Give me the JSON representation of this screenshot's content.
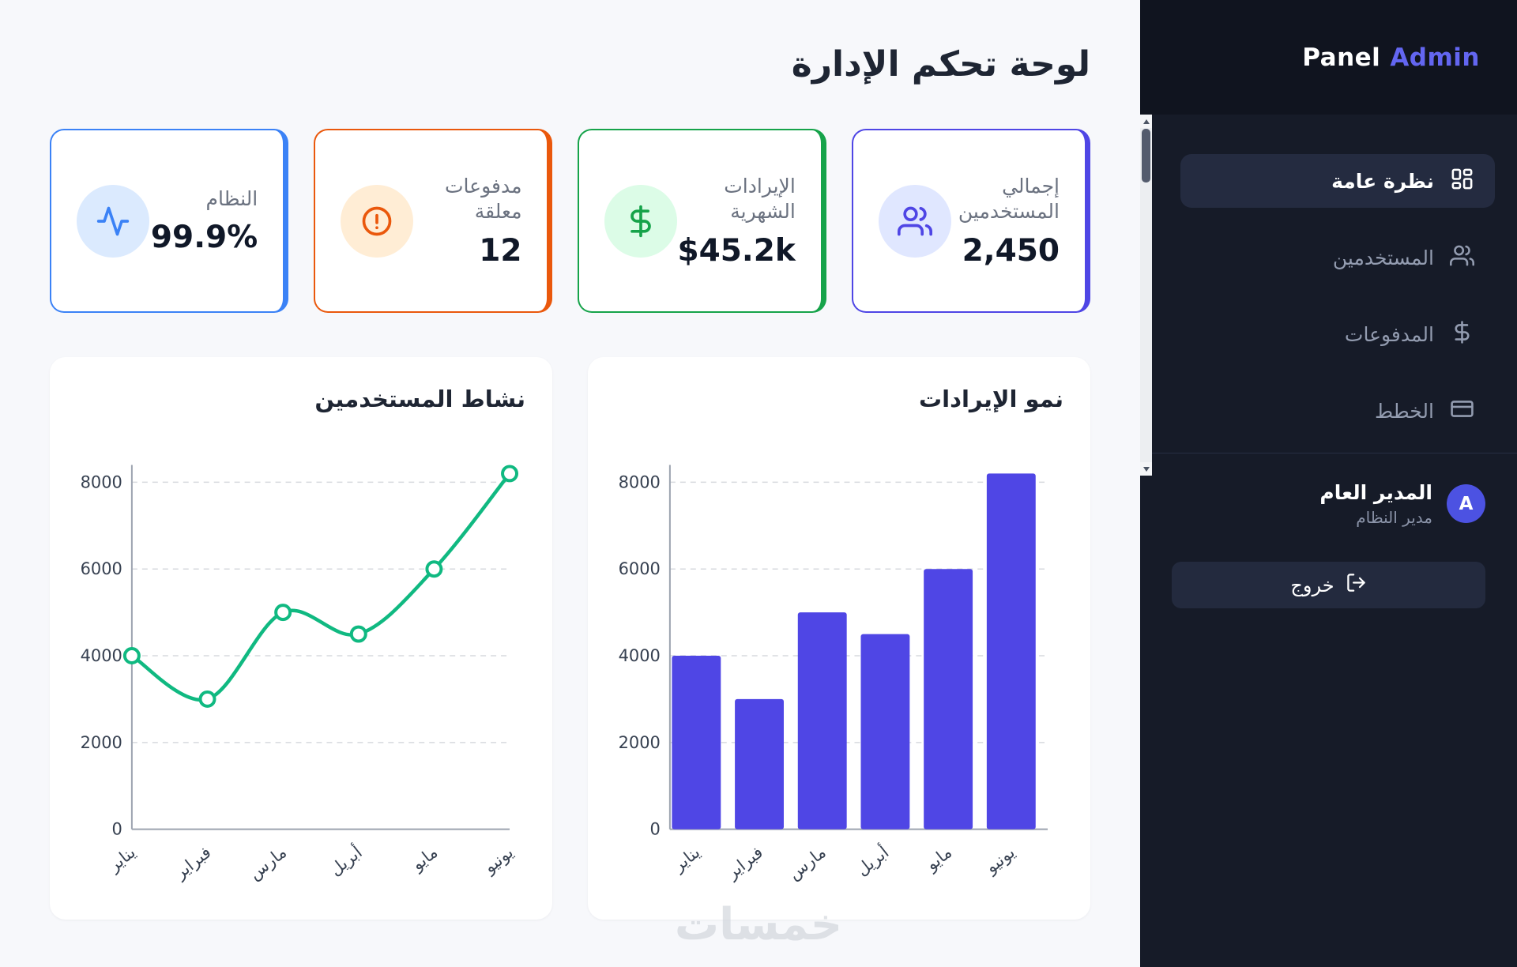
{
  "page": {
    "title": "لوحة تحكم الإدارة",
    "watermark": "خمسات"
  },
  "sidebar": {
    "brand": {
      "name": "Panel",
      "highlight": "Admin"
    },
    "nav": [
      {
        "label": "نظرة عامة",
        "icon": "dashboard-icon",
        "active": true
      },
      {
        "label": "المستخدمين",
        "icon": "users-icon",
        "active": false
      },
      {
        "label": "المدفوعات",
        "icon": "payments-icon",
        "active": false
      },
      {
        "label": "الخطط",
        "icon": "plans-icon",
        "active": false
      }
    ],
    "profile": {
      "initial": "A",
      "name": "المدير العام",
      "role": "مدير النظام"
    },
    "logout_label": "خروج"
  },
  "stats": [
    {
      "label": "إجمالي المستخدمين",
      "value": "2,450",
      "accent": "#4f46e5",
      "icon_bg": "#e0e7ff",
      "icon": "users-icon"
    },
    {
      "label": "الإيرادات الشهرية",
      "value": "$45.2k",
      "accent": "#16a34a",
      "icon_bg": "#dcfce7",
      "icon": "dollar-icon"
    },
    {
      "label": "مدفوعات معلقة",
      "value": "12",
      "accent": "#ea580c",
      "icon_bg": "#ffedd5",
      "icon": "alert-icon"
    },
    {
      "label": "النظام",
      "value": "99.9%",
      "accent": "#3b82f6",
      "icon_bg": "#dbeafe",
      "icon": "activity-icon"
    }
  ],
  "chart_data": [
    {
      "type": "bar",
      "title": "نمو الإيرادات",
      "categories": [
        "يناير",
        "فبراير",
        "مارس",
        "أبريل",
        "مايو",
        "يونيو"
      ],
      "values": [
        4000,
        3000,
        5000,
        4500,
        6000,
        8200
      ],
      "xlabel": "",
      "ylabel": "",
      "ylim": [
        0,
        8000
      ],
      "yticks": [
        0,
        2000,
        4000,
        6000,
        8000
      ],
      "grid": "dashed-horizontal",
      "legend": "none",
      "color": "#4f46e5"
    },
    {
      "type": "line",
      "title": "نشاط المستخدمين",
      "categories": [
        "يناير",
        "فبراير",
        "مارس",
        "أبريل",
        "مايو",
        "يونيو"
      ],
      "values": [
        4000,
        3000,
        5000,
        4500,
        6000,
        8200
      ],
      "xlabel": "",
      "ylabel": "",
      "ylim": [
        0,
        8000
      ],
      "yticks": [
        0,
        2000,
        4000,
        6000,
        8000
      ],
      "grid": "dashed-horizontal",
      "legend": "none",
      "color": "#10b981",
      "marker": "circle-open"
    }
  ]
}
